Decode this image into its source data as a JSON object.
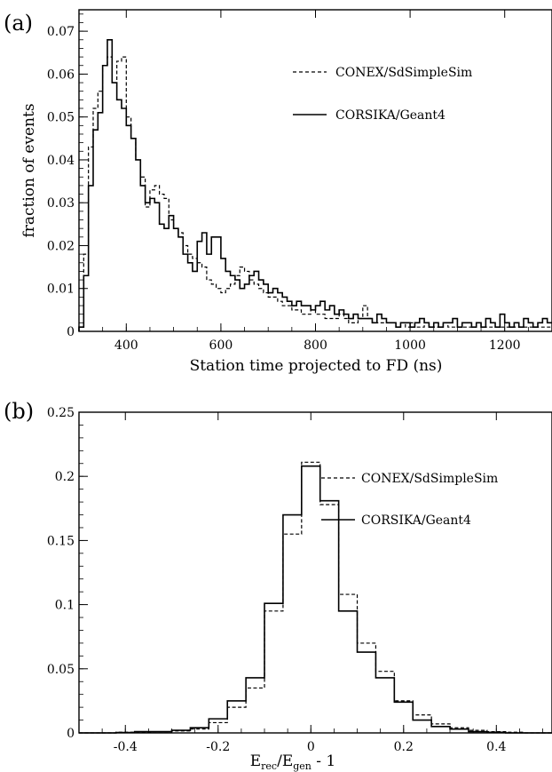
{
  "chart_data": [
    {
      "panel_label": "(a)",
      "type": "histogram",
      "xlabel": "Station time projected to FD (ns)",
      "ylabel": "fraction of events",
      "xlim": [
        300,
        1300
      ],
      "ylim": [
        0,
        0.075
      ],
      "xticks": [
        400,
        600,
        800,
        1000,
        1200
      ],
      "xtick_labels": [
        "400",
        "600",
        "800",
        "1000",
        "1200"
      ],
      "yticks": [
        0,
        0.01,
        0.02,
        0.03,
        0.04,
        0.05,
        0.06,
        0.07
      ],
      "ytick_labels": [
        "0",
        "0.01",
        "0.02",
        "0.03",
        "0.04",
        "0.05",
        "0.06",
        "0.07"
      ],
      "legend_position": "top-right",
      "series": [
        {
          "name": "CONEX/SdSimpleSim",
          "style": "dashed",
          "bin_start": 300,
          "bin_width": 10,
          "values": [
            0.001,
            0.018,
            0.043,
            0.052,
            0.056,
            0.062,
            0.064,
            0.058,
            0.063,
            0.064,
            0.05,
            0.045,
            0.04,
            0.036,
            0.029,
            0.033,
            0.034,
            0.032,
            0.031,
            0.026,
            0.024,
            0.023,
            0.02,
            0.018,
            0.017,
            0.016,
            0.015,
            0.012,
            0.011,
            0.01,
            0.009,
            0.01,
            0.011,
            0.013,
            0.015,
            0.014,
            0.012,
            0.011,
            0.01,
            0.009,
            0.008,
            0.008,
            0.007,
            0.006,
            0.006,
            0.005,
            0.005,
            0.004,
            0.004,
            0.005,
            0.004,
            0.004,
            0.003,
            0.003,
            0.003,
            0.004,
            0.003,
            0.002,
            0.002,
            0.003,
            0.006,
            0.003,
            0.002,
            0.002,
            0.002,
            0.002,
            0.002,
            0.001,
            0.002,
            0.001,
            0.002,
            0.001,
            0.001,
            0.002,
            0.001,
            0.001,
            0.001,
            0.002,
            0.001,
            0.001,
            0.001,
            0.001,
            0.001,
            0.001,
            0.002,
            0.001,
            0.001,
            0.001,
            0.001,
            0.001,
            0.001,
            0.001,
            0.001,
            0.001,
            0.001,
            0.001,
            0.001,
            0.001,
            0.001,
            0.001
          ]
        },
        {
          "name": "CORSIKA/Geant4",
          "style": "solid",
          "bin_start": 300,
          "bin_width": 10,
          "values": [
            0.001,
            0.013,
            0.034,
            0.047,
            0.051,
            0.062,
            0.068,
            0.058,
            0.054,
            0.052,
            0.048,
            0.045,
            0.04,
            0.034,
            0.03,
            0.031,
            0.03,
            0.025,
            0.024,
            0.027,
            0.024,
            0.022,
            0.018,
            0.016,
            0.014,
            0.021,
            0.023,
            0.018,
            0.022,
            0.022,
            0.017,
            0.014,
            0.013,
            0.012,
            0.01,
            0.011,
            0.013,
            0.014,
            0.012,
            0.011,
            0.009,
            0.01,
            0.009,
            0.008,
            0.007,
            0.006,
            0.007,
            0.006,
            0.006,
            0.005,
            0.006,
            0.007,
            0.005,
            0.006,
            0.004,
            0.005,
            0.004,
            0.003,
            0.004,
            0.003,
            0.003,
            0.003,
            0.002,
            0.004,
            0.003,
            0.002,
            0.002,
            0.001,
            0.002,
            0.002,
            0.001,
            0.002,
            0.003,
            0.002,
            0.001,
            0.002,
            0.001,
            0.002,
            0.002,
            0.003,
            0.001,
            0.002,
            0.002,
            0.001,
            0.002,
            0.001,
            0.003,
            0.002,
            0.001,
            0.004,
            0.002,
            0.001,
            0.002,
            0.001,
            0.003,
            0.002,
            0.001,
            0.002,
            0.003,
            0.002
          ]
        }
      ]
    },
    {
      "panel_label": "(b)",
      "type": "histogram",
      "xlabel_main": "E",
      "xlabel_sub1": "rec",
      "xlabel_mid": "/E",
      "xlabel_sub2": "gen",
      "xlabel_end": " - 1",
      "ylabel": "",
      "xlim": [
        -0.5,
        0.52
      ],
      "ylim": [
        0,
        0.25
      ],
      "xticks": [
        -0.4,
        -0.2,
        0,
        0.2,
        0.4
      ],
      "xtick_labels": [
        "-0.4",
        "-0.2",
        "0",
        "0.2",
        "0.4"
      ],
      "yticks": [
        0,
        0.05,
        0.1,
        0.15,
        0.2,
        0.25
      ],
      "ytick_labels": [
        "0",
        "0.05",
        "0.1",
        "0.15",
        "0.2",
        "0.25"
      ],
      "legend_position": "top-right",
      "series": [
        {
          "name": "CONEX/SdSimpleSim",
          "style": "dashed",
          "bin_start": -0.5,
          "bin_width": 0.04,
          "values": [
            0.0,
            0.0,
            0.0005,
            0.0005,
            0.001,
            0.0015,
            0.003,
            0.008,
            0.02,
            0.035,
            0.095,
            0.155,
            0.211,
            0.178,
            0.108,
            0.07,
            0.048,
            0.025,
            0.014,
            0.007,
            0.004,
            0.002,
            0.001,
            0.0005,
            0.0,
            0.0
          ]
        },
        {
          "name": "CORSIKA/Geant4",
          "style": "solid",
          "bin_start": -0.5,
          "bin_width": 0.04,
          "values": [
            0.0,
            0.0,
            0.0003,
            0.001,
            0.001,
            0.002,
            0.004,
            0.011,
            0.025,
            0.043,
            0.101,
            0.17,
            0.208,
            0.181,
            0.095,
            0.063,
            0.043,
            0.024,
            0.01,
            0.005,
            0.003,
            0.001,
            0.0005,
            0.0,
            0.0,
            0.0
          ]
        }
      ]
    }
  ]
}
